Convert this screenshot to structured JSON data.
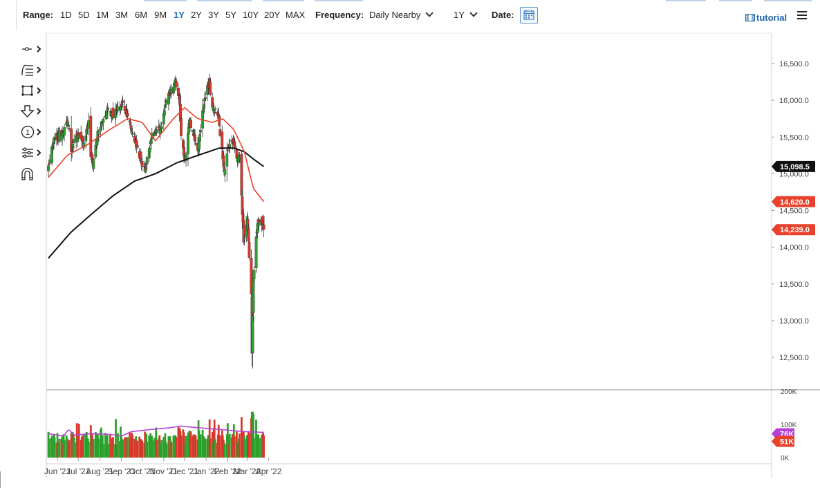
{
  "toolbar": {
    "range_label": "Range:",
    "ranges": [
      "1D",
      "5D",
      "1M",
      "3M",
      "6M",
      "9M",
      "1Y",
      "2Y",
      "3Y",
      "5Y",
      "10Y",
      "20Y",
      "MAX"
    ],
    "active_range": "1Y",
    "frequency_label": "Frequency:",
    "frequency_value": "Daily Nearby",
    "period_value": "1Y",
    "date_label": "Date:",
    "tutorial_label": "tutorial"
  },
  "tools": [
    "crosshair-tool",
    "fibonacci-tool",
    "rectangle-tool",
    "arrow-tool",
    "annotation-tool",
    "pitchfork-tool",
    "magnet-tool"
  ],
  "tool_1_glyph": "1",
  "colors": {
    "up": "#2ca02c",
    "down": "#d9372b",
    "ma_fast": "#e8412c",
    "ma_slow": "#111111",
    "volume_avg": "#b542d6"
  },
  "chart_data": {
    "type": "candlestick",
    "x_ticks": [
      "Jun '21",
      "Jul '21",
      "Aug '21",
      "Sep '21",
      "Oct '21",
      "Nov '21",
      "Dec '21",
      "Jan '22",
      "Feb '22",
      "Mar '22",
      "Apr '22"
    ],
    "price_axis": {
      "ticks": [
        "16,500.0",
        "16,000.0",
        "15,500.0",
        "15,000.0",
        "14,500.0",
        "14,000.0",
        "13,500.0",
        "13,000.0",
        "12,500.0"
      ],
      "ylim": [
        12300,
        16800
      ]
    },
    "volume_axis": {
      "ticks": [
        "200K",
        "100K",
        "0K"
      ],
      "ylim": [
        0,
        200000
      ]
    },
    "last_price": "14,239.0",
    "ma_fast_last": "14,620.0",
    "ma_slow_last": "15,098.5",
    "volume_avg_last": "76K",
    "volume_last": "51K",
    "close_path": [
      [
        "2021-05-19",
        15100
      ],
      [
        "2021-05-27",
        15450
      ],
      [
        "2021-06-10",
        15600
      ],
      [
        "2021-06-17",
        15700
      ],
      [
        "2021-06-21",
        15300
      ],
      [
        "2021-06-28",
        15550
      ],
      [
        "2021-07-08",
        15400
      ],
      [
        "2021-07-16",
        15700
      ],
      [
        "2021-07-19",
        15250
      ],
      [
        "2021-07-22",
        15150
      ],
      [
        "2021-07-29",
        15550
      ],
      [
        "2021-08-13",
        15900
      ],
      [
        "2021-08-20",
        15800
      ],
      [
        "2021-09-03",
        15950
      ],
      [
        "2021-09-10",
        15800
      ],
      [
        "2021-09-17",
        15550
      ],
      [
        "2021-09-24",
        15350
      ],
      [
        "2021-09-30",
        15150
      ],
      [
        "2021-10-05",
        15050
      ],
      [
        "2021-10-14",
        15500
      ],
      [
        "2021-10-29",
        15650
      ],
      [
        "2021-11-05",
        16000
      ],
      [
        "2021-11-18",
        16250
      ],
      [
        "2021-11-24",
        16000
      ],
      [
        "2021-11-26",
        15500
      ],
      [
        "2021-12-01",
        15200
      ],
      [
        "2021-12-03",
        15300
      ],
      [
        "2021-12-08",
        15700
      ],
      [
        "2021-12-14",
        15550
      ],
      [
        "2021-12-20",
        15300
      ],
      [
        "2021-12-27",
        15850
      ],
      [
        "2022-01-05",
        16250
      ],
      [
        "2022-01-10",
        15900
      ],
      [
        "2022-01-18",
        15800
      ],
      [
        "2022-01-24",
        15300
      ],
      [
        "2022-01-27",
        15050
      ],
      [
        "2022-02-03",
        15400
      ],
      [
        "2022-02-10",
        15450
      ],
      [
        "2022-02-14",
        15200
      ],
      [
        "2022-02-18",
        15250
      ],
      [
        "2022-02-24",
        14100
      ],
      [
        "2022-03-01",
        14400
      ],
      [
        "2022-03-07",
        13400
      ],
      [
        "2022-03-08",
        12600
      ],
      [
        "2022-03-10",
        13600
      ],
      [
        "2022-03-16",
        14350
      ],
      [
        "2022-03-23",
        14350
      ],
      [
        "2022-03-25",
        14239
      ]
    ],
    "ma_fast_path": [
      [
        "2021-05-19",
        14950
      ],
      [
        "2021-06-15",
        15250
      ],
      [
        "2021-07-15",
        15400
      ],
      [
        "2021-08-15",
        15600
      ],
      [
        "2021-09-10",
        15750
      ],
      [
        "2021-10-01",
        15700
      ],
      [
        "2021-10-20",
        15450
      ],
      [
        "2021-11-15",
        15750
      ],
      [
        "2021-12-01",
        15900
      ],
      [
        "2021-12-20",
        15750
      ],
      [
        "2022-01-10",
        15700
      ],
      [
        "2022-01-25",
        15750
      ],
      [
        "2022-02-10",
        15600
      ],
      [
        "2022-02-25",
        15300
      ],
      [
        "2022-03-10",
        14800
      ],
      [
        "2022-03-25",
        14620
      ]
    ],
    "ma_slow_path": [
      [
        "2021-05-19",
        13850
      ],
      [
        "2021-06-20",
        14200
      ],
      [
        "2021-07-20",
        14450
      ],
      [
        "2021-08-20",
        14700
      ],
      [
        "2021-09-20",
        14900
      ],
      [
        "2021-10-20",
        15000
      ],
      [
        "2021-11-20",
        15150
      ],
      [
        "2021-12-20",
        15250
      ],
      [
        "2022-01-20",
        15350
      ],
      [
        "2022-02-10",
        15350
      ],
      [
        "2022-02-25",
        15300
      ],
      [
        "2022-03-10",
        15200
      ],
      [
        "2022-03-25",
        15098
      ]
    ],
    "volume_avg_path": [
      [
        "2021-05-19",
        72000
      ],
      [
        "2021-06-10",
        65000
      ],
      [
        "2021-06-17",
        85000
      ],
      [
        "2021-06-25",
        68000
      ],
      [
        "2021-07-20",
        72000
      ],
      [
        "2021-08-15",
        70000
      ],
      [
        "2021-09-01",
        65000
      ],
      [
        "2021-09-15",
        78000
      ],
      [
        "2021-10-15",
        85000
      ],
      [
        "2021-11-10",
        90000
      ],
      [
        "2021-11-25",
        95000
      ],
      [
        "2021-12-20",
        90000
      ],
      [
        "2022-01-20",
        85000
      ],
      [
        "2022-02-15",
        80000
      ],
      [
        "2022-03-01",
        78000
      ],
      [
        "2022-03-25",
        76000
      ]
    ]
  }
}
